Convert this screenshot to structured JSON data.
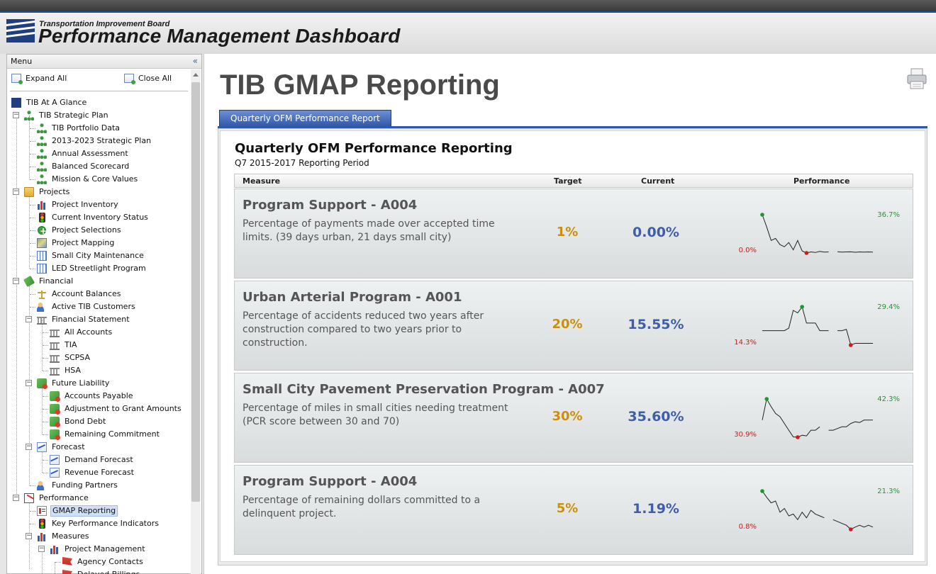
{
  "header": {
    "org": "Transportation Improvement Board",
    "title": "Performance Management Dashboard"
  },
  "sidebar": {
    "menu_label": "Menu",
    "collapse_glyph": "«",
    "expand_all": "Expand All",
    "close_all": "Close All",
    "items": [
      {
        "label": "TIB At A Glance"
      },
      {
        "label": "TIB Strategic Plan"
      },
      {
        "label": "TIB Portfolio Data"
      },
      {
        "label": "2013-2023 Strategic Plan"
      },
      {
        "label": "Annual Assessment"
      },
      {
        "label": "Balanced Scorecard"
      },
      {
        "label": "Mission & Core Values"
      },
      {
        "label": "Projects"
      },
      {
        "label": "Project Inventory"
      },
      {
        "label": "Current Inventory Status"
      },
      {
        "label": "Project Selections"
      },
      {
        "label": "Project Mapping"
      },
      {
        "label": "Small City Maintenance"
      },
      {
        "label": "LED Streetlight Program"
      },
      {
        "label": "Financial"
      },
      {
        "label": "Account Balances"
      },
      {
        "label": "Active TIB Customers"
      },
      {
        "label": "Financial Statement"
      },
      {
        "label": "All Accounts"
      },
      {
        "label": "TIA"
      },
      {
        "label": "SCPSA"
      },
      {
        "label": "HSA"
      },
      {
        "label": "Future Liability"
      },
      {
        "label": "Accounts Payable"
      },
      {
        "label": "Adjustment to Grant Amounts"
      },
      {
        "label": "Bond Debt"
      },
      {
        "label": "Remaining Commitment"
      },
      {
        "label": "Forecast"
      },
      {
        "label": "Demand Forecast"
      },
      {
        "label": "Revenue Forecast"
      },
      {
        "label": "Funding Partners"
      },
      {
        "label": "Performance"
      },
      {
        "label": "GMAP Reporting"
      },
      {
        "label": "Key Performance Indicators"
      },
      {
        "label": "Measures"
      },
      {
        "label": "Project Management"
      },
      {
        "label": "Agency Contacts"
      },
      {
        "label": "Delayed Billings"
      }
    ]
  },
  "main": {
    "page_title": "TIB GMAP Reporting",
    "tab_label": "Quarterly OFM Performance Report",
    "report_title": "Quarterly OFM Performance Reporting",
    "report_period": "Q7 2015-2017 Reporting Period",
    "columns": {
      "measure": "Measure",
      "target": "Target",
      "current": "Current",
      "performance": "Performance"
    },
    "measures": [
      {
        "title": "Program Support - A004",
        "desc": "Percentage of payments made over accepted time limits. (39 days urban, 21 days small city)",
        "target": "1%",
        "current": "0.00%",
        "high_label": "36.7%",
        "low_label": "0.0%",
        "spark": [
          36.7,
          25,
          12,
          14,
          8,
          6,
          10,
          3,
          12,
          2,
          0.0,
          1,
          0.5,
          1.5,
          0.8,
          1,
          null,
          1.2,
          0.8,
          1,
          1.1,
          0.7,
          1,
          0.9,
          1,
          0.8
        ]
      },
      {
        "title": "Urban Arterial Program - A001",
        "desc": "Percentage of accidents reduced two years after construction compared to two years prior to construction.",
        "target": "20%",
        "current": "15.55%",
        "high_label": "29.4%",
        "low_label": "14.3%",
        "spark": [
          20,
          20,
          20,
          20,
          20,
          20,
          21,
          28,
          27,
          29.4,
          23,
          23,
          23,
          20,
          20,
          20,
          null,
          20,
          20,
          20.5,
          14.3,
          15,
          15,
          15,
          15,
          15
        ]
      },
      {
        "title": "Small City Pavement Preservation Program - A007",
        "desc": "Percentage of miles in small cities needing treatment (PCR score between 30 and 70)",
        "target": "30%",
        "current": "35.60%",
        "high_label": "42.3%",
        "low_label": "30.9%",
        "spark": [
          36,
          42.3,
          40,
          38,
          37,
          35,
          33,
          31,
          30.9,
          31.5,
          31.3,
          33,
          33,
          34,
          null,
          33,
          33,
          33.5,
          34,
          34,
          35,
          35.5,
          35.3,
          36,
          36,
          36
        ]
      },
      {
        "title": "Program Support - A004",
        "desc": "Percentage of remaining dollars committed to a delinquent project.",
        "target": "5%",
        "current": "1.19%",
        "high_label": "21.3%",
        "low_label": "0.8%",
        "spark": [
          21.3,
          18,
          15,
          16,
          10,
          12,
          8,
          9,
          6,
          10,
          7,
          11,
          9,
          8,
          7,
          null,
          6,
          5,
          4,
          3,
          0.8,
          2,
          3,
          2,
          3,
          2
        ]
      }
    ]
  },
  "colors": {
    "accent": "#2f59a8",
    "target": "#c9900f",
    "current": "#3e5ea8",
    "high": "#1a9a2a",
    "low": "#d01a1a"
  }
}
